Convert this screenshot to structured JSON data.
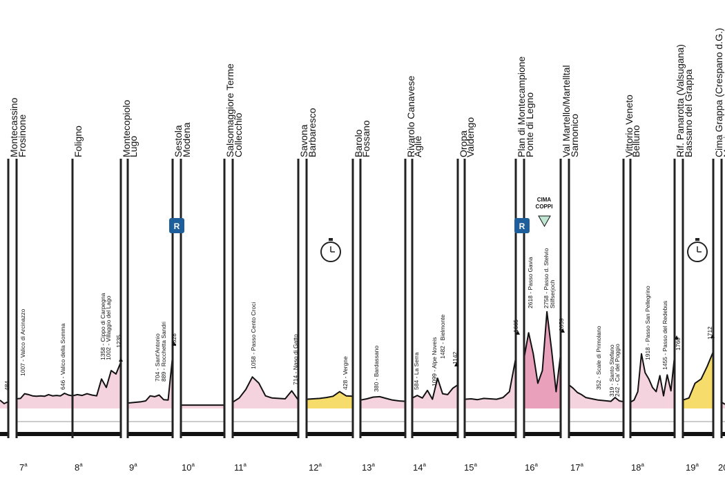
{
  "chart_data": {
    "type": "area",
    "title": "",
    "colors": {
      "normal": "#f4d3df",
      "time_trial": "#f6dc6a",
      "high_mountain": "#e8a0bb",
      "line": "#111111",
      "rest_badge": "#1e5f9b",
      "cima": "#bfe6d3"
    },
    "cities": [
      "Montecassino",
      "Frosinone",
      "Foligno",
      "Montecopiolo",
      "Lugo",
      "Sestola",
      "Modena",
      "Salsomaggiore Terme",
      "Collecchio",
      "Savona",
      "Barbaresco",
      "Barolo",
      "Fossano",
      "Rivarolo Canavese",
      "Agliè",
      "Oropa",
      "Valdengo",
      "Plan di Montecampione",
      "Ponte di Legno",
      "Val Martello/Martelltal",
      "Sarnonico",
      "Vittorio Veneto",
      "Belluno",
      "Rif. Panarotta (Valsugana)",
      "Bassano del Grappa",
      "Cima Grappa (Crespano d.G.)",
      "Maniago"
    ],
    "stages": [
      {
        "number": "7",
        "sup": "a",
        "profile": "normal",
        "elevations": [
          230,
          240,
          350,
          330,
          300,
          290,
          300,
          290,
          330,
          300,
          310,
          300,
          360,
          320,
          300
        ]
      },
      {
        "number": "8",
        "sup": "a",
        "profile": "normal",
        "elevations": [
          300,
          330,
          310,
          350,
          320,
          300,
          700,
          500,
          900,
          820,
          1100
        ]
      },
      {
        "number": "9",
        "sup": "a",
        "profile": "normal",
        "elevations": [
          130,
          140,
          150,
          160,
          180,
          300,
          280,
          320,
          210,
          200,
          1250
        ]
      },
      {
        "number": "10",
        "sup": "a",
        "profile": "normal",
        "elevations": [
          80,
          80,
          80,
          80,
          80,
          80
        ]
      },
      {
        "number": "11",
        "sup": "a",
        "profile": "normal",
        "elevations": [
          150,
          250,
          450,
          750,
          600,
          300,
          250,
          240,
          230,
          420,
          200
        ]
      },
      {
        "number": "12",
        "sup": "a",
        "profile": "time_trial",
        "elevations": [
          220,
          230,
          240,
          260,
          290,
          400,
          300,
          290
        ]
      },
      {
        "number": "13",
        "sup": "a",
        "profile": "normal",
        "elevations": [
          200,
          230,
          270,
          280,
          240,
          200,
          180,
          170
        ]
      },
      {
        "number": "14",
        "sup": "a",
        "profile": "normal",
        "elevations": [
          250,
          310,
          250,
          430,
          220,
          720,
          350,
          330,
          480,
          560
        ]
      },
      {
        "number": "15",
        "sup": "a",
        "profile": "normal",
        "elevations": [
          220,
          230,
          210,
          240,
          230,
          220,
          260,
          400,
          1200
        ]
      },
      {
        "number": "16",
        "sup": "a",
        "profile": "high_mountain",
        "elevations": [
          1200,
          1800,
          1300,
          600,
          900,
          2300,
          1400,
          400,
          1300
        ]
      },
      {
        "number": "17",
        "sup": "a",
        "profile": "normal",
        "elevations": [
          560,
          480,
          380,
          330,
          260,
          240,
          220,
          200,
          190,
          180,
          170,
          260,
          180,
          160
        ]
      },
      {
        "number": "18",
        "sup": "a",
        "profile": "normal",
        "elevations": [
          150,
          200,
          400,
          1300,
          850,
          700,
          500,
          400,
          780,
          300,
          800,
          420,
          1250
        ]
      },
      {
        "number": "19",
        "sup": "a",
        "profile": "time_trial",
        "elevations": [
          200,
          250,
          600,
          700,
          1000,
          1350
        ]
      },
      {
        "number": "20",
        "sup": "a",
        "profile": "normal",
        "elevations": [
          150,
          100
        ]
      }
    ],
    "climbs": [
      "484",
      "1007 - Valico di Arcinazzo",
      "646 - Valico della Somma",
      "1358 - Cippo di Carpegna",
      "1002 - Villaggio del Lago",
      "1235",
      "704 - Sant'Antonio",
      "889 - Rocchetta Sandri",
      "1528",
      "1058 - Passo Cento Croci",
      "714 - Naso di Gatto",
      "428 - Vergne",
      "380 - Bardassano",
      "584 - La Serra",
      "1099 - Alpe Noveis",
      "1482 - Bielmonte",
      "1142",
      "1665",
      "2618 - Passo Gavia",
      "2758 - Passo d. Stelvio",
      "Stilfserjoch",
      "2059",
      "352 - Scale di Primolano",
      "319 - Santo Stefano",
      "242 - Ca' del Poggio",
      "1918 - Passo San Pellegrino",
      "1455 - Passo del Redebus",
      "1760",
      "1712"
    ],
    "markers": {
      "rest_day": "R",
      "cima_coppi": [
        "CIMA",
        "COPPI"
      ],
      "time_trial_icon": "stopwatch-icon"
    }
  }
}
